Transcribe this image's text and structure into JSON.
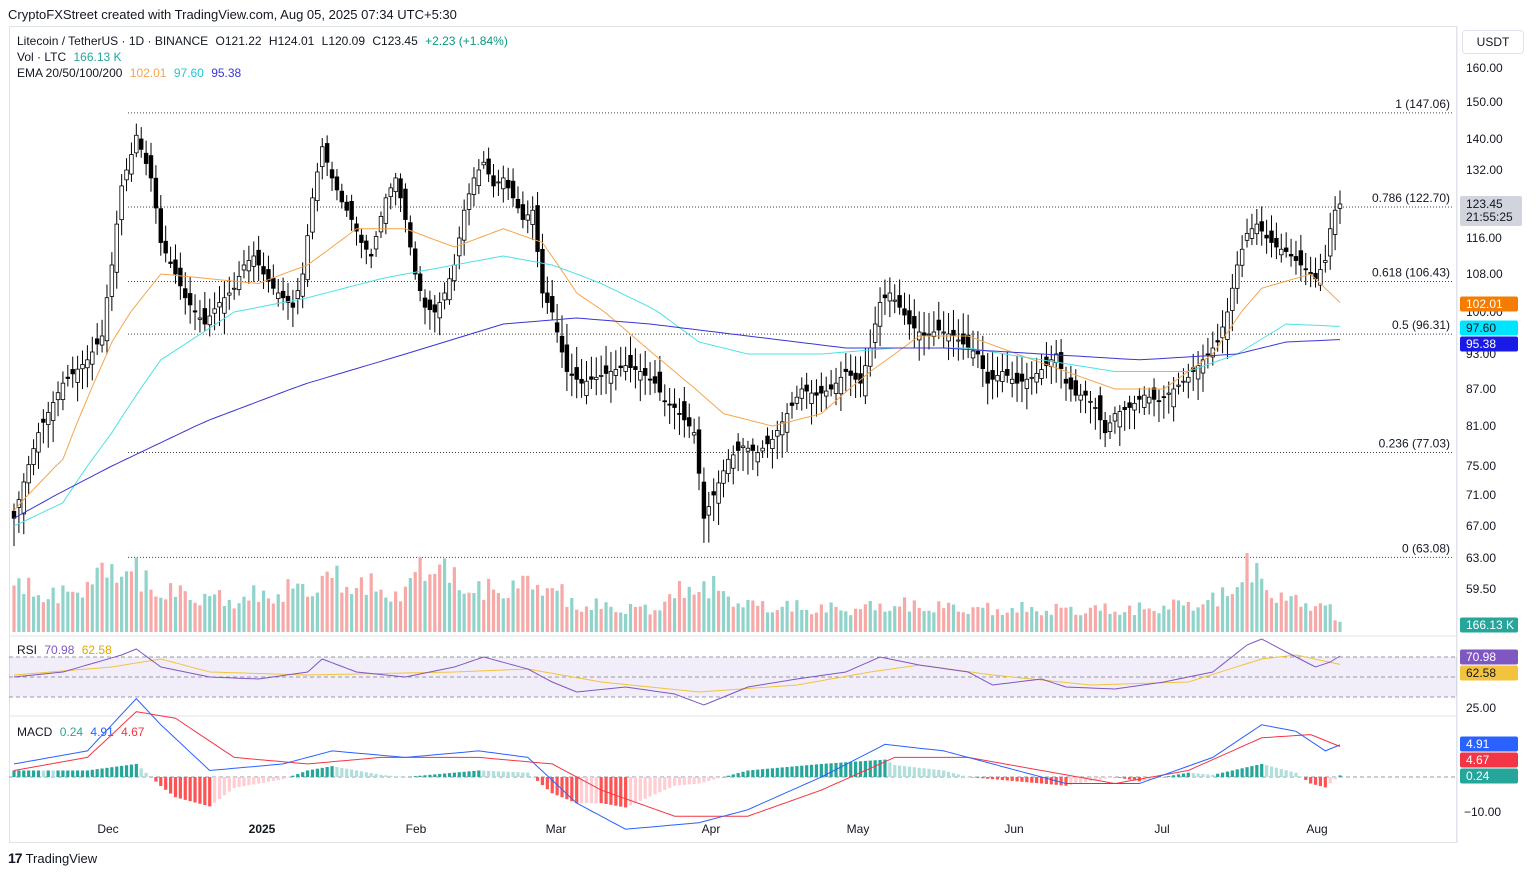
{
  "header": {
    "attribution": "CryptoFXStreet created with TradingView.com, Aug 05, 2025 07:34 UTC+5:30"
  },
  "legend": {
    "symbol_line": "Litecoin / TetherUS · 1D · BINANCE",
    "ohlc": {
      "o": "O121.22",
      "h": "H124.01",
      "l": "L120.09",
      "c": "C123.45",
      "chg": "+2.23 (+1.84%)"
    },
    "vol_label": "Vol · LTC",
    "vol_value": "166.13 K",
    "ema_label": "EMA 20/50/100/200",
    "ema_values": [
      "102.01",
      "97.60",
      "95.38"
    ],
    "rsi_label": "RSI",
    "rsi_values": [
      "70.98",
      "62.58"
    ],
    "macd_label": "MACD",
    "macd_values": [
      "0.24",
      "4.91",
      "4.67"
    ]
  },
  "currency": "USDT",
  "footer": {
    "logo_text": "TradingView"
  },
  "colors": {
    "up": "#089981",
    "down": "#f23645",
    "vol_up": "#8fd3ca",
    "vol_down": "#f7a9a7",
    "ema20": "#f7a44b",
    "ema50": "#4de1e6",
    "ema100": "#3b35d6",
    "rsi": "#7e57c2",
    "rsi_ma": "#f4c33d",
    "macd": "#2962ff",
    "signal": "#f23645",
    "hist_up": "#26a69a",
    "hist_down": "#ff5252"
  },
  "chart_data": {
    "type": "candlestick",
    "title": "Litecoin / TetherUS · 1D · BINANCE",
    "y_ticks": [
      "160.00",
      "150.00",
      "140.00",
      "132.00",
      "116.00",
      "108.00",
      "100.00",
      "93.00",
      "87.00",
      "81.00",
      "75.00",
      "71.00",
      "67.00",
      "63.00",
      "59.50"
    ],
    "x_ticks": [
      "Dec",
      "2025",
      "Feb",
      "Mar",
      "Apr",
      "May",
      "Jun",
      "Jul",
      "Aug"
    ],
    "fib_levels": [
      {
        "label": "1 (147.06)",
        "value": 147.06
      },
      {
        "label": "0.786 (122.70)",
        "value": 122.7
      },
      {
        "label": "0.618 (106.43)",
        "value": 106.43
      },
      {
        "label": "0.5 (96.31)",
        "value": 96.31
      },
      {
        "label": "0.236 (77.03)",
        "value": 77.03
      },
      {
        "label": "0 (63.08)",
        "value": 63.08
      }
    ],
    "last_price": {
      "value": "123.45",
      "countdown": "21:55:25"
    },
    "ema_tags": [
      {
        "name": "EMA 20",
        "value": "102.01"
      },
      {
        "name": "EMA 50",
        "value": "97.60"
      },
      {
        "name": "EMA 100",
        "value": "95.38"
      }
    ],
    "volume_tag": "166.13 K",
    "rsi": {
      "ticks": [
        "25.00"
      ],
      "value": "70.98",
      "ma": "62.58",
      "upper": 70,
      "lower": 30
    },
    "macd": {
      "ticks": [
        "−10.00"
      ],
      "histogram": "0.24",
      "macd": "4.91",
      "signal": "4.67"
    },
    "price_path": [
      [
        0,
        68
      ],
      [
        5,
        80
      ],
      [
        10,
        88
      ],
      [
        15,
        92
      ],
      [
        18,
        96
      ],
      [
        20,
        110
      ],
      [
        22,
        128
      ],
      [
        24,
        136
      ],
      [
        25,
        141
      ],
      [
        28,
        130
      ],
      [
        30,
        115
      ],
      [
        33,
        108
      ],
      [
        35,
        103
      ],
      [
        37,
        100
      ],
      [
        39,
        98
      ],
      [
        42,
        102
      ],
      [
        45,
        105
      ],
      [
        47,
        110
      ],
      [
        49,
        112
      ],
      [
        51,
        108
      ],
      [
        53,
        105
      ],
      [
        55,
        103
      ],
      [
        57,
        101
      ],
      [
        59,
        108
      ],
      [
        61,
        125
      ],
      [
        63,
        138
      ],
      [
        65,
        130
      ],
      [
        67,
        124
      ],
      [
        69,
        120
      ],
      [
        71,
        115
      ],
      [
        73,
        112
      ],
      [
        76,
        125
      ],
      [
        78,
        130
      ],
      [
        80,
        120
      ],
      [
        82,
        108
      ],
      [
        84,
        101
      ],
      [
        86,
        100
      ],
      [
        88,
        104
      ],
      [
        90,
        110
      ],
      [
        92,
        122
      ],
      [
        94,
        130
      ],
      [
        96,
        134
      ],
      [
        98,
        128
      ],
      [
        100,
        130
      ],
      [
        102,
        125
      ],
      [
        104,
        120
      ],
      [
        106,
        122
      ],
      [
        108,
        104
      ],
      [
        110,
        100
      ],
      [
        113,
        90
      ],
      [
        116,
        88
      ],
      [
        119,
        89
      ],
      [
        122,
        90
      ],
      [
        125,
        91
      ],
      [
        128,
        90
      ],
      [
        131,
        88
      ],
      [
        133,
        85
      ],
      [
        135,
        84
      ],
      [
        137,
        82
      ],
      [
        139,
        80
      ],
      [
        140,
        74
      ],
      [
        141,
        68
      ],
      [
        143,
        71
      ],
      [
        146,
        76
      ],
      [
        149,
        78
      ],
      [
        152,
        77
      ],
      [
        155,
        79
      ],
      [
        158,
        83
      ],
      [
        161,
        87
      ],
      [
        164,
        86
      ],
      [
        167,
        87
      ],
      [
        170,
        90
      ],
      [
        173,
        88
      ],
      [
        175,
        94
      ],
      [
        177,
        102
      ],
      [
        179,
        104
      ],
      [
        181,
        101
      ],
      [
        183,
        98
      ],
      [
        186,
        96
      ],
      [
        189,
        97
      ],
      [
        192,
        96
      ],
      [
        195,
        94
      ],
      [
        197,
        93
      ],
      [
        199,
        88
      ],
      [
        202,
        90
      ],
      [
        205,
        88
      ],
      [
        208,
        89
      ],
      [
        211,
        91
      ],
      [
        213,
        93
      ],
      [
        215,
        88
      ],
      [
        217,
        86
      ],
      [
        219,
        86
      ],
      [
        221,
        84
      ],
      [
        223,
        80
      ],
      [
        225,
        83
      ],
      [
        228,
        84
      ],
      [
        231,
        86
      ],
      [
        234,
        85
      ],
      [
        237,
        87
      ],
      [
        240,
        89
      ],
      [
        243,
        92
      ],
      [
        246,
        95
      ],
      [
        248,
        100
      ],
      [
        250,
        110
      ],
      [
        252,
        117
      ],
      [
        254,
        119
      ],
      [
        256,
        116
      ],
      [
        258,
        114
      ],
      [
        260,
        113
      ],
      [
        262,
        111
      ],
      [
        264,
        109
      ],
      [
        266,
        107
      ],
      [
        268,
        111
      ],
      [
        269,
        118
      ],
      [
        270,
        122
      ],
      [
        271,
        123.45
      ]
    ],
    "volume_path": [
      [
        0,
        0.5
      ],
      [
        10,
        0.4
      ],
      [
        22,
        0.75
      ],
      [
        30,
        0.45
      ],
      [
        45,
        0.35
      ],
      [
        60,
        0.5
      ],
      [
        65,
        0.6
      ],
      [
        80,
        0.4
      ],
      [
        83,
        0.8
      ],
      [
        95,
        0.45
      ],
      [
        108,
        0.55
      ],
      [
        115,
        0.3
      ],
      [
        130,
        0.25
      ],
      [
        140,
        0.55
      ],
      [
        150,
        0.3
      ],
      [
        170,
        0.25
      ],
      [
        180,
        0.3
      ],
      [
        200,
        0.25
      ],
      [
        230,
        0.25
      ],
      [
        246,
        0.35
      ],
      [
        252,
        0.7
      ],
      [
        260,
        0.35
      ],
      [
        268,
        0.3
      ],
      [
        271,
        0.1
      ]
    ],
    "ema20_path": [
      [
        0,
        69
      ],
      [
        10,
        76
      ],
      [
        20,
        95
      ],
      [
        30,
        108
      ],
      [
        40,
        107
      ],
      [
        50,
        106
      ],
      [
        60,
        110
      ],
      [
        70,
        118
      ],
      [
        80,
        118
      ],
      [
        90,
        114
      ],
      [
        100,
        118
      ],
      [
        108,
        115
      ],
      [
        115,
        104
      ],
      [
        125,
        97
      ],
      [
        135,
        90
      ],
      [
        145,
        83
      ],
      [
        155,
        81
      ],
      [
        165,
        83
      ],
      [
        175,
        90
      ],
      [
        185,
        96
      ],
      [
        195,
        96
      ],
      [
        205,
        93
      ],
      [
        215,
        90
      ],
      [
        225,
        87
      ],
      [
        235,
        87
      ],
      [
        245,
        93
      ],
      [
        255,
        105
      ],
      [
        265,
        108
      ],
      [
        271,
        102
      ]
    ],
    "ema50_path": [
      [
        0,
        67
      ],
      [
        10,
        70
      ],
      [
        20,
        80
      ],
      [
        30,
        92
      ],
      [
        45,
        100
      ],
      [
        60,
        103
      ],
      [
        75,
        107
      ],
      [
        90,
        110
      ],
      [
        100,
        112
      ],
      [
        110,
        110
      ],
      [
        120,
        106
      ],
      [
        130,
        101
      ],
      [
        140,
        95
      ],
      [
        150,
        93
      ],
      [
        165,
        93
      ],
      [
        180,
        94
      ],
      [
        195,
        94
      ],
      [
        210,
        92
      ],
      [
        225,
        90
      ],
      [
        240,
        90
      ],
      [
        250,
        93
      ],
      [
        260,
        98
      ],
      [
        271,
        97.6
      ]
    ],
    "ema100_path": [
      [
        0,
        68
      ],
      [
        20,
        75
      ],
      [
        40,
        82
      ],
      [
        60,
        88
      ],
      [
        80,
        93
      ],
      [
        100,
        98
      ],
      [
        115,
        99
      ],
      [
        130,
        98
      ],
      [
        150,
        96
      ],
      [
        170,
        94
      ],
      [
        190,
        94
      ],
      [
        210,
        93
      ],
      [
        230,
        92
      ],
      [
        250,
        93
      ],
      [
        260,
        95
      ],
      [
        271,
        95.4
      ]
    ],
    "rsi_path": [
      [
        0,
        50
      ],
      [
        10,
        55
      ],
      [
        22,
        72
      ],
      [
        25,
        78
      ],
      [
        30,
        60
      ],
      [
        40,
        50
      ],
      [
        50,
        48
      ],
      [
        60,
        55
      ],
      [
        63,
        68
      ],
      [
        70,
        55
      ],
      [
        80,
        50
      ],
      [
        90,
        60
      ],
      [
        96,
        70
      ],
      [
        105,
        58
      ],
      [
        110,
        45
      ],
      [
        115,
        35
      ],
      [
        125,
        40
      ],
      [
        135,
        33
      ],
      [
        141,
        22
      ],
      [
        150,
        40
      ],
      [
        160,
        48
      ],
      [
        170,
        55
      ],
      [
        177,
        70
      ],
      [
        185,
        62
      ],
      [
        195,
        55
      ],
      [
        200,
        42
      ],
      [
        210,
        48
      ],
      [
        215,
        40
      ],
      [
        225,
        38
      ],
      [
        235,
        45
      ],
      [
        245,
        55
      ],
      [
        252,
        82
      ],
      [
        255,
        88
      ],
      [
        260,
        75
      ],
      [
        266,
        60
      ],
      [
        269,
        65
      ],
      [
        271,
        70.98
      ]
    ],
    "rsi_ma_path": [
      [
        0,
        52
      ],
      [
        20,
        60
      ],
      [
        30,
        68
      ],
      [
        40,
        55
      ],
      [
        60,
        52
      ],
      [
        90,
        55
      ],
      [
        105,
        58
      ],
      [
        120,
        45
      ],
      [
        140,
        35
      ],
      [
        160,
        42
      ],
      [
        175,
        55
      ],
      [
        185,
        62
      ],
      [
        200,
        52
      ],
      [
        220,
        42
      ],
      [
        240,
        45
      ],
      [
        255,
        68
      ],
      [
        262,
        72
      ],
      [
        271,
        62.58
      ]
    ],
    "macd_path": [
      [
        0,
        2
      ],
      [
        15,
        4
      ],
      [
        25,
        12
      ],
      [
        30,
        8
      ],
      [
        40,
        1
      ],
      [
        55,
        2
      ],
      [
        65,
        4
      ],
      [
        80,
        3
      ],
      [
        95,
        4
      ],
      [
        105,
        3
      ],
      [
        115,
        -4
      ],
      [
        125,
        -8
      ],
      [
        140,
        -7
      ],
      [
        150,
        -5
      ],
      [
        165,
        0
      ],
      [
        178,
        5
      ],
      [
        190,
        4
      ],
      [
        200,
        2
      ],
      [
        215,
        -1
      ],
      [
        230,
        -1
      ],
      [
        245,
        3
      ],
      [
        255,
        8
      ],
      [
        262,
        7
      ],
      [
        268,
        4
      ],
      [
        271,
        4.91
      ]
    ],
    "signal_path": [
      [
        0,
        1
      ],
      [
        15,
        3
      ],
      [
        25,
        10
      ],
      [
        33,
        9
      ],
      [
        45,
        3
      ],
      [
        60,
        2
      ],
      [
        75,
        3
      ],
      [
        95,
        3
      ],
      [
        110,
        2
      ],
      [
        120,
        -2
      ],
      [
        135,
        -6
      ],
      [
        150,
        -6
      ],
      [
        165,
        -2
      ],
      [
        180,
        3
      ],
      [
        195,
        3
      ],
      [
        210,
        1
      ],
      [
        225,
        -1
      ],
      [
        240,
        1
      ],
      [
        255,
        6
      ],
      [
        265,
        6.5
      ],
      [
        271,
        4.67
      ]
    ]
  }
}
